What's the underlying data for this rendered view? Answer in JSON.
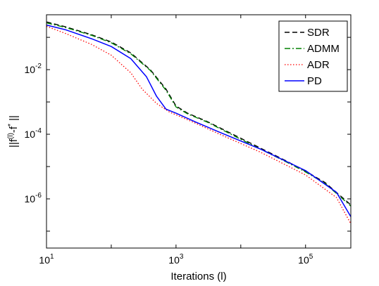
{
  "chart_data": {
    "type": "line",
    "xscale": "log",
    "yscale": "log",
    "xlim": [
      10,
      500000
    ],
    "ylim": [
      3e-08,
      0.5
    ],
    "xlabel": "Iterations (l)",
    "ylabel_parts": {
      "base": "||f",
      "sup1": "(l)",
      "mid": "-f",
      "sup2": "*",
      "end": " ||"
    },
    "xticks": [
      {
        "value": 10,
        "base": "10",
        "exp": "1"
      },
      {
        "value": 1000,
        "base": "10",
        "exp": "3"
      },
      {
        "value": 100000,
        "base": "10",
        "exp": "5"
      }
    ],
    "yticks": [
      {
        "value": 0.01,
        "base": "10",
        "exp": "-2"
      },
      {
        "value": 0.0001,
        "base": "10",
        "exp": "-4"
      },
      {
        "value": 1e-06,
        "base": "10",
        "exp": "-6"
      }
    ],
    "legend_position": "top-right",
    "series": [
      {
        "name": "SDR",
        "color": "#000000",
        "dash": "7,4",
        "width": 1.4,
        "points": [
          [
            10,
            0.3
          ],
          [
            20,
            0.21
          ],
          [
            50,
            0.12
          ],
          [
            100,
            0.072
          ],
          [
            200,
            0.033
          ],
          [
            400,
            0.01
          ],
          [
            700,
            0.0025
          ],
          [
            1000,
            0.00075
          ],
          [
            1500,
            0.00045
          ],
          [
            3000,
            0.00025
          ],
          [
            10000,
            7.5e-05
          ],
          [
            50000,
            1.5e-05
          ],
          [
            100000,
            7.2e-06
          ],
          [
            200000,
            3.2e-06
          ],
          [
            500000,
            6.5e-07
          ]
        ]
      },
      {
        "name": "ADMM",
        "color": "#008000",
        "dash": "8,3,2,3",
        "width": 1.4,
        "points": [
          [
            10,
            0.28
          ],
          [
            20,
            0.2
          ],
          [
            50,
            0.115
          ],
          [
            100,
            0.068
          ],
          [
            200,
            0.031
          ],
          [
            400,
            0.0095
          ],
          [
            700,
            0.0023
          ],
          [
            1000,
            0.0007
          ],
          [
            1500,
            0.00043
          ],
          [
            3000,
            0.00024
          ],
          [
            10000,
            7e-05
          ],
          [
            50000,
            1.4e-05
          ],
          [
            100000,
            6.8e-06
          ],
          [
            200000,
            3e-06
          ],
          [
            500000,
            6e-07
          ]
        ]
      },
      {
        "name": "ADR",
        "color": "#ff0000",
        "dash": "1.5,2.5",
        "width": 1.3,
        "points": [
          [
            10,
            0.22
          ],
          [
            20,
            0.13
          ],
          [
            50,
            0.06
          ],
          [
            100,
            0.028
          ],
          [
            200,
            0.008
          ],
          [
            300,
            0.0025
          ],
          [
            500,
            0.0009
          ],
          [
            800,
            0.00048
          ],
          [
            1000,
            0.0004
          ],
          [
            2000,
            0.00022
          ],
          [
            5000,
            9.5e-05
          ],
          [
            20000,
            2.8e-05
          ],
          [
            100000,
            5.5e-06
          ],
          [
            300000,
            1.1e-06
          ],
          [
            500000,
            1.7e-07
          ]
        ]
      },
      {
        "name": "PD",
        "color": "#0000ff",
        "dash": "",
        "width": 1.5,
        "points": [
          [
            10,
            0.24
          ],
          [
            20,
            0.17
          ],
          [
            50,
            0.09
          ],
          [
            100,
            0.052
          ],
          [
            200,
            0.022
          ],
          [
            350,
            0.006
          ],
          [
            500,
            0.0015
          ],
          [
            700,
            0.0006
          ],
          [
            1000,
            0.00045
          ],
          [
            2000,
            0.00024
          ],
          [
            5000,
            0.00011
          ],
          [
            20000,
            3.5e-05
          ],
          [
            100000,
            7.5e-06
          ],
          [
            300000,
            1.6e-06
          ],
          [
            500000,
            2.8e-07
          ]
        ]
      }
    ]
  }
}
